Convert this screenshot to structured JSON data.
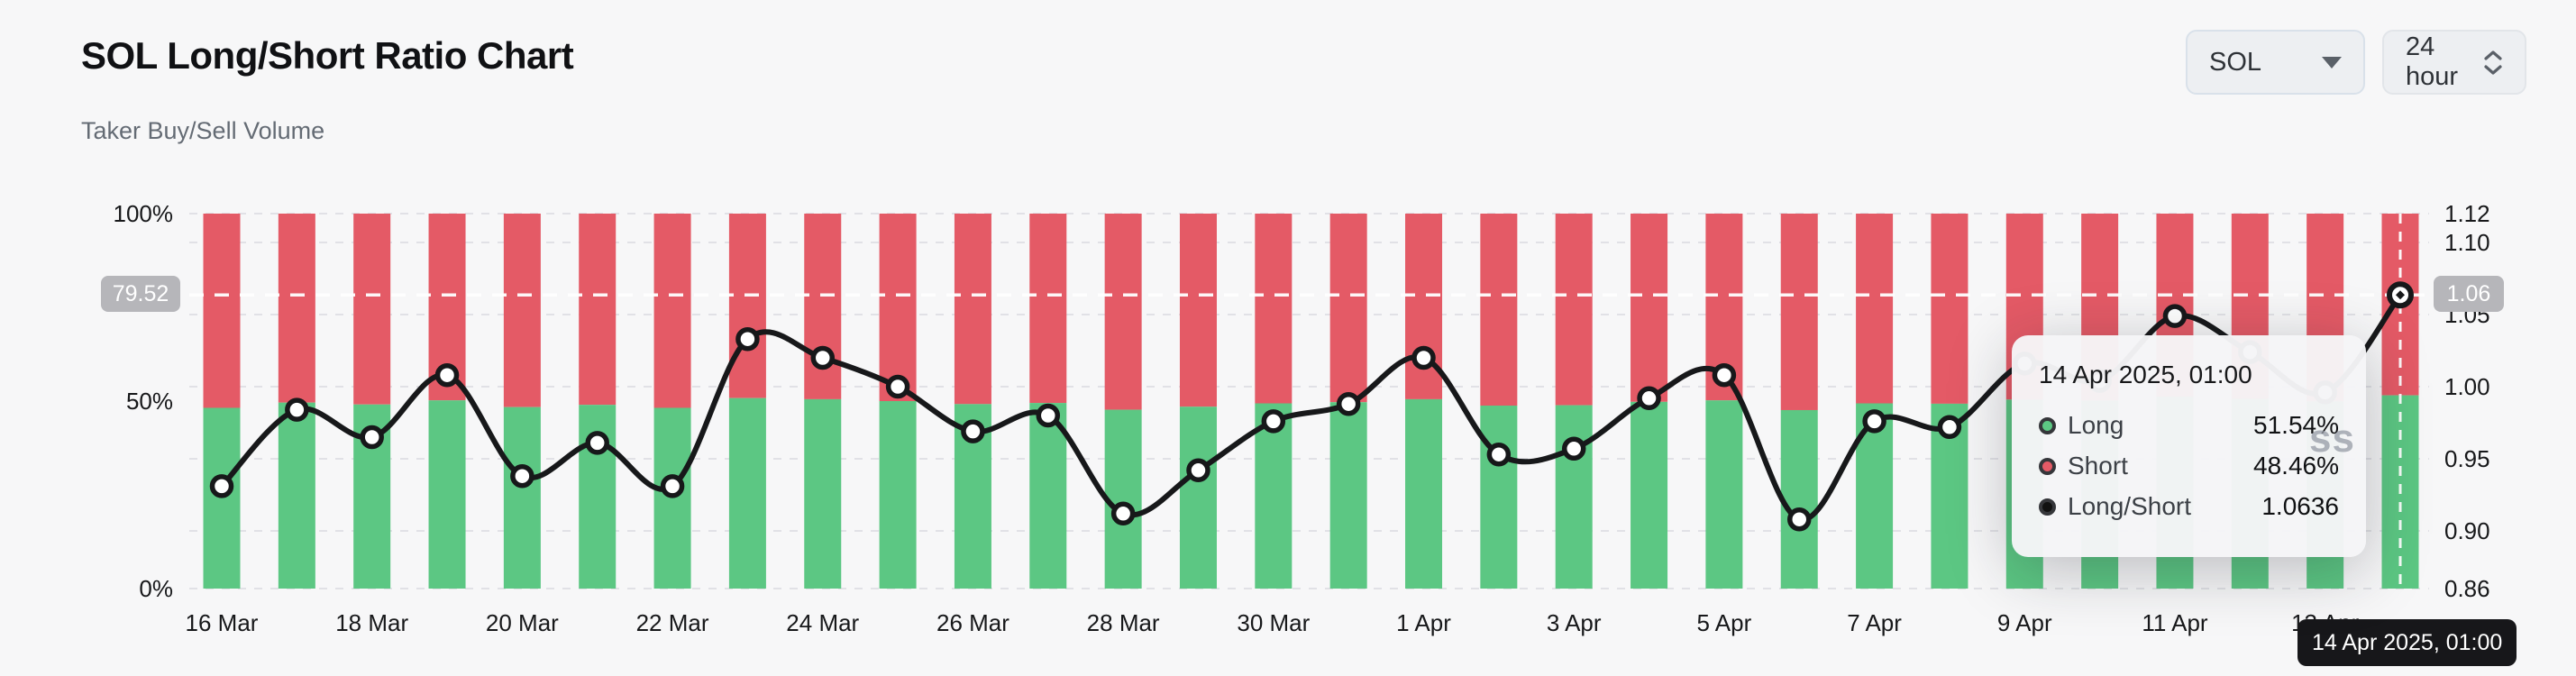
{
  "header": {
    "title": "SOL Long/Short Ratio Chart",
    "subtitle": "Taker Buy/Sell Volume"
  },
  "controls": {
    "symbol": "SOL",
    "interval": "24 hour"
  },
  "watermark": "ss",
  "tooltip": {
    "title": "14 Apr 2025, 01:00",
    "rows": [
      {
        "label": "Long",
        "value": "51.54%"
      },
      {
        "label": "Short",
        "value": "48.46%"
      },
      {
        "label": "Long/Short",
        "value": "1.0636"
      }
    ]
  },
  "chart_data": {
    "type": "stacked-bar+line",
    "title": "SOL Long/Short Ratio Chart",
    "categories": [
      "16 Mar",
      "17 Mar",
      "18 Mar",
      "19 Mar",
      "20 Mar",
      "21 Mar",
      "22 Mar",
      "23 Mar",
      "24 Mar",
      "25 Mar",
      "26 Mar",
      "27 Mar",
      "28 Mar",
      "29 Mar",
      "30 Mar",
      "31 Mar",
      "1 Apr",
      "2 Apr",
      "3 Apr",
      "4 Apr",
      "5 Apr",
      "6 Apr",
      "7 Apr",
      "8 Apr",
      "9 Apr",
      "10 Apr",
      "11 Apr",
      "12 Apr",
      "13 Apr",
      "14 Apr"
    ],
    "series": [
      {
        "name": "Long",
        "unit": "%",
        "color": "#5cc783",
        "values": [
          48.2,
          49.6,
          49.1,
          50.2,
          48.4,
          49.0,
          48.2,
          50.8,
          50.5,
          50.0,
          49.2,
          49.5,
          47.7,
          48.5,
          49.4,
          49.7,
          50.5,
          48.8,
          48.9,
          49.8,
          50.2,
          47.6,
          49.4,
          49.3,
          50.4,
          50.1,
          51.2,
          50.6,
          49.9,
          51.54
        ]
      },
      {
        "name": "Short",
        "unit": "%",
        "color": "#e45a66",
        "values": [
          51.8,
          50.4,
          50.9,
          49.8,
          51.6,
          51.0,
          51.8,
          49.2,
          49.5,
          50.0,
          50.8,
          50.5,
          52.3,
          51.5,
          50.6,
          50.3,
          49.5,
          51.2,
          51.1,
          50.2,
          49.8,
          52.4,
          50.6,
          50.7,
          49.6,
          49.9,
          48.8,
          49.4,
          50.1,
          48.46
        ]
      },
      {
        "name": "Long/Short",
        "color": "#17181a",
        "values": [
          0.931,
          0.984,
          0.965,
          1.008,
          0.938,
          0.961,
          0.931,
          1.033,
          1.02,
          1.0,
          0.969,
          0.98,
          0.912,
          0.942,
          0.976,
          0.988,
          1.02,
          0.953,
          0.957,
          0.992,
          1.008,
          0.908,
          0.976,
          0.972,
          1.016,
          1.004,
          1.049,
          1.024,
          0.996,
          1.0636
        ]
      }
    ],
    "left_axis": {
      "ticks": [
        "100%",
        "50%",
        "0%"
      ],
      "tick_values": [
        100,
        50,
        0
      ],
      "range": [
        0,
        100
      ]
    },
    "right_axis": {
      "ticks": [
        "1.12",
        "1.10",
        "1.05",
        "1.00",
        "0.95",
        "0.90",
        "0.86"
      ],
      "tick_values": [
        1.12,
        1.1,
        1.05,
        1.0,
        0.95,
        0.9,
        0.86
      ],
      "range": [
        0.86,
        1.12
      ],
      "gridline_values": [
        1.12,
        1.1,
        1.05,
        1.0,
        0.95,
        0.9,
        0.86
      ]
    },
    "x_tick_indices": [
      0,
      2,
      4,
      6,
      8,
      10,
      12,
      14,
      16,
      18,
      20,
      22,
      24,
      26,
      28
    ],
    "current_value_line": {
      "left_label": "79.52",
      "right_label": "1.06",
      "value": 1.0636
    },
    "crosshair_index": 29,
    "x_axis_badge": "14 Apr 2025, 01:00",
    "legend_position": "tooltip",
    "grid": true
  }
}
